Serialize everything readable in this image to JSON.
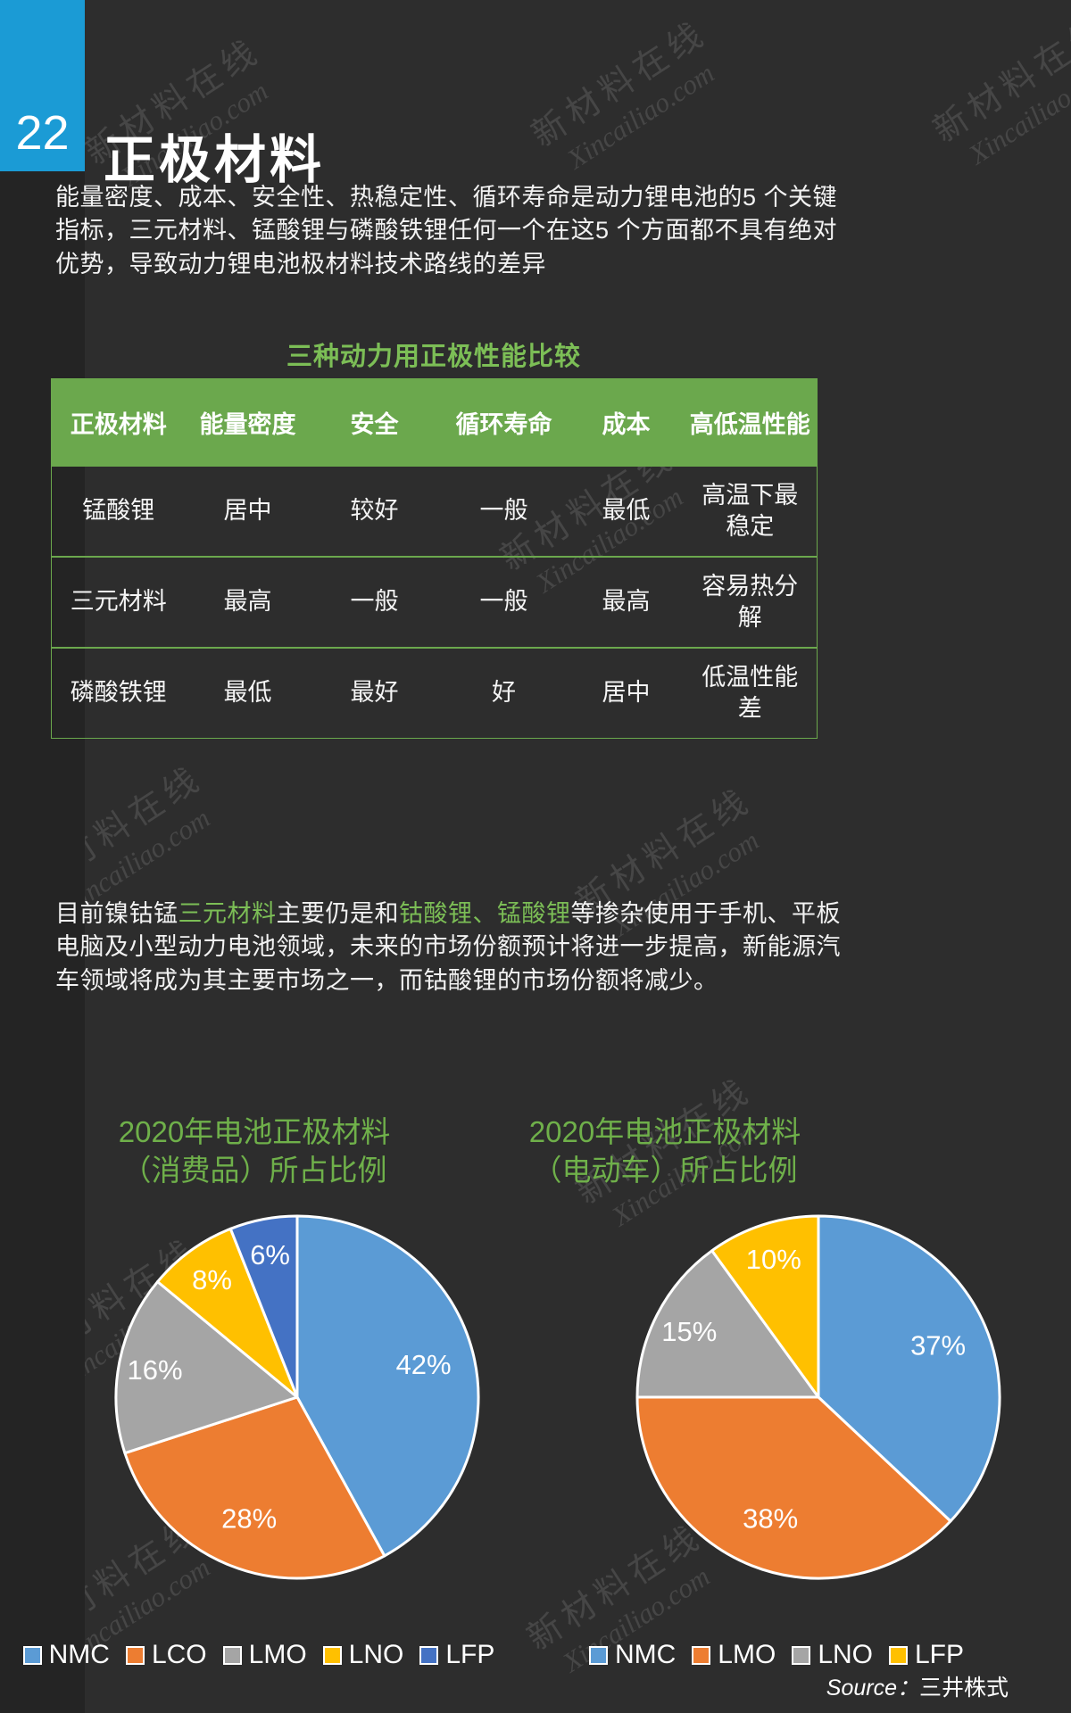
{
  "page": {
    "number": "22",
    "title": "正极材料",
    "background": "#2D2D2D",
    "accent_blue": "#1B9BD5",
    "accent_green": "#6BA84D"
  },
  "watermark": {
    "line1": "新材料在线",
    "line2": "Xincailiao.com"
  },
  "intro_paragraph": "能量密度、成本、安全性、热稳定性、循环寿命是动力锂电池的5 个关键指标，三元材料、锰酸锂与磷酸铁锂任何一个在这5 个方面都不具有绝对优势，导致动力锂电池极材料技术路线的差异",
  "table": {
    "title": "三种动力用正极性能比较",
    "headers": [
      "正极材料",
      "能量密度",
      "安全",
      "循环寿命",
      "成本",
      "高低温性能"
    ],
    "rows": [
      [
        "锰酸锂",
        "居中",
        "较好",
        "一般",
        "最低",
        "高温下最稳定"
      ],
      [
        "三元材料",
        "最高",
        "一般",
        "一般",
        "最高",
        "容易热分解"
      ],
      [
        "磷酸铁锂",
        "最低",
        "最好",
        "好",
        "居中",
        "低温性能差"
      ]
    ]
  },
  "body_paragraph": {
    "segments": [
      {
        "text": "目前镍钴锰",
        "green": false
      },
      {
        "text": "三元材料",
        "green": true
      },
      {
        "text": "主要仍是和",
        "green": false
      },
      {
        "text": "钴酸锂、锰酸锂",
        "green": true
      },
      {
        "text": "等掺杂使用于手机、平板电脑及小型动力电池领域，未来的市场份额预计将进一步提高，新能源汽车领域将成为其主要市场之一，而钴酸锂的市场份额将减少。",
        "green": false
      }
    ]
  },
  "chart_data": [
    {
      "type": "pie",
      "title_line1": "2020年电池正极材料",
      "title_line2": "（消费品）所占比例",
      "labels": [
        "NMC",
        "LCO",
        "LMO",
        "LNO",
        "LFP"
      ],
      "values": [
        42,
        28,
        16,
        8,
        6
      ],
      "value_labels": [
        "42%",
        "28%",
        "16%",
        "8%",
        "6%"
      ],
      "colors": [
        "#5B9BD5",
        "#ED7D31",
        "#A5A5A5",
        "#FFC000",
        "#4472C4"
      ],
      "start_angle_deg": 0,
      "direction": "clockwise",
      "legend_position": "bottom"
    },
    {
      "type": "pie",
      "title_line1": "2020年电池正极材料",
      "title_line2": "（电动车）所占比例",
      "labels": [
        "NMC",
        "LMO",
        "LNO",
        "LFP"
      ],
      "values": [
        37,
        38,
        15,
        10
      ],
      "value_labels": [
        "37%",
        "38%",
        "15%",
        "10%"
      ],
      "colors": [
        "#5B9BD5",
        "#ED7D31",
        "#A5A5A5",
        "#FFC000"
      ],
      "start_angle_deg": 0,
      "direction": "clockwise",
      "legend_position": "bottom"
    }
  ],
  "source": {
    "prefix": "Source：",
    "text": "三井株式"
  }
}
